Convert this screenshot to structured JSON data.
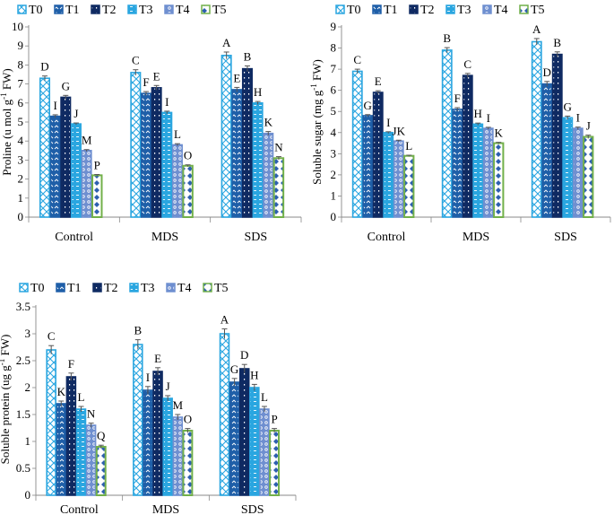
{
  "figure": {
    "series_colors": {
      "T0": "#2aa6e0",
      "T1": "#1f5fa8",
      "T2": "#0f2a62",
      "T3": "#2aa6e0",
      "T4": "#6f8fd0",
      "T5": "#72b04a"
    }
  },
  "chart_data": [
    {
      "type": "bar",
      "title": "",
      "xlabel": "",
      "ylabel": "Proline (u mol g-1 FW)",
      "ylabel_main": "Proline (u mol g",
      "ylabel_sup": "-1",
      "ylabel_tail": " FW)",
      "ylim": [
        0,
        10
      ],
      "yticks": [
        "0",
        "1",
        "2",
        "3",
        "4",
        "5",
        "6",
        "7",
        "8",
        "9",
        "10"
      ],
      "categories": [
        "Control",
        "MDS",
        "SDS"
      ],
      "legend": [
        "T0",
        "T1",
        "T2",
        "T3",
        "T4",
        "T5"
      ],
      "series": [
        {
          "name": "T0",
          "values": [
            7.3,
            7.6,
            8.5
          ],
          "errors": [
            0.12,
            0.15,
            0.18
          ],
          "labels": [
            "D",
            "C",
            "A"
          ]
        },
        {
          "name": "T1",
          "values": [
            5.3,
            6.5,
            6.7
          ],
          "errors": [
            0.08,
            0.1,
            0.12
          ],
          "labels": [
            "I",
            "F",
            "E"
          ]
        },
        {
          "name": "T2",
          "values": [
            6.3,
            6.8,
            7.8
          ],
          "errors": [
            0.1,
            0.12,
            0.15
          ],
          "labels": [
            "G",
            "E",
            "B"
          ]
        },
        {
          "name": "T3",
          "values": [
            4.9,
            5.5,
            6.0
          ],
          "errors": [
            0.05,
            0.07,
            0.08
          ],
          "labels": [
            "J",
            "I",
            "H"
          ]
        },
        {
          "name": "T4",
          "values": [
            3.5,
            3.8,
            4.4
          ],
          "errors": [
            0.05,
            0.06,
            0.1
          ],
          "labels": [
            "M",
            "L",
            "K"
          ]
        },
        {
          "name": "T5",
          "values": [
            2.2,
            2.7,
            3.1
          ],
          "errors": [
            0.04,
            0.05,
            0.08
          ],
          "labels": [
            "P",
            "O",
            "N"
          ]
        }
      ]
    },
    {
      "type": "bar",
      "title": "",
      "xlabel": "",
      "ylabel": "Soluble sugar (mg g-1 FW)",
      "ylabel_main": "Soluble sugar (mg g",
      "ylabel_sup": "-1",
      "ylabel_tail": " FW)",
      "ylim": [
        0,
        9
      ],
      "yticks": [
        "0",
        "1",
        "2",
        "3",
        "4",
        "5",
        "6",
        "7",
        "8",
        "9"
      ],
      "categories": [
        "Control",
        "MDS",
        "SDS"
      ],
      "legend": [
        "T0",
        "T1",
        "T2",
        "T3",
        "T4",
        "T5"
      ],
      "series": [
        {
          "name": "T0",
          "values": [
            6.9,
            7.9,
            8.3
          ],
          "errors": [
            0.1,
            0.12,
            0.15
          ],
          "labels": [
            "C",
            "B",
            "A"
          ]
        },
        {
          "name": "T1",
          "values": [
            4.8,
            5.1,
            6.3
          ],
          "errors": [
            0.05,
            0.08,
            0.12
          ],
          "labels": [
            "G",
            "F",
            "D"
          ]
        },
        {
          "name": "T2",
          "values": [
            5.9,
            6.7,
            7.7
          ],
          "errors": [
            0.08,
            0.1,
            0.12
          ],
          "labels": [
            "E",
            "C",
            "B"
          ]
        },
        {
          "name": "T3",
          "values": [
            4.0,
            4.4,
            4.7
          ],
          "errors": [
            0.04,
            0.05,
            0.08
          ],
          "labels": [
            "I",
            "H",
            "G"
          ]
        },
        {
          "name": "T4",
          "values": [
            3.6,
            4.2,
            4.2
          ],
          "errors": [
            0.04,
            0.05,
            0.06
          ],
          "labels": [
            "JK",
            "I",
            "I"
          ]
        },
        {
          "name": "T5",
          "values": [
            2.9,
            3.5,
            3.8
          ],
          "errors": [
            0.03,
            0.04,
            0.08
          ],
          "labels": [
            "L",
            "K",
            "J"
          ]
        }
      ]
    },
    {
      "type": "bar",
      "title": "",
      "xlabel": "",
      "ylabel": "Soluble protein (ug g-1 FW)",
      "ylabel_main": "Soluble protein (ug g",
      "ylabel_sup": "-1",
      "ylabel_tail": " FW)",
      "ylim": [
        0,
        3.5
      ],
      "yticks": [
        "0",
        "0.5",
        "1",
        "1.5",
        "2",
        "2.5",
        "3",
        "3.5"
      ],
      "categories": [
        "Control",
        "MDS",
        "SDS"
      ],
      "legend": [
        "T0",
        "T1",
        "T2",
        "T3",
        "T4",
        "T5"
      ],
      "series": [
        {
          "name": "T0",
          "values": [
            2.7,
            2.8,
            3.0
          ],
          "errors": [
            0.08,
            0.09,
            0.09
          ],
          "labels": [
            "C",
            "B",
            "A"
          ]
        },
        {
          "name": "T1",
          "values": [
            1.7,
            1.95,
            2.1
          ],
          "errors": [
            0.05,
            0.07,
            0.07
          ],
          "labels": [
            "K",
            "I",
            "G"
          ]
        },
        {
          "name": "T2",
          "values": [
            2.2,
            2.3,
            2.35
          ],
          "errors": [
            0.07,
            0.07,
            0.08
          ],
          "labels": [
            "F",
            "E",
            "D"
          ]
        },
        {
          "name": "T3",
          "values": [
            1.6,
            1.8,
            2.0
          ],
          "errors": [
            0.05,
            0.05,
            0.06
          ],
          "labels": [
            "L",
            "J",
            "H"
          ]
        },
        {
          "name": "T4",
          "values": [
            1.3,
            1.45,
            1.6
          ],
          "errors": [
            0.04,
            0.05,
            0.05
          ],
          "labels": [
            "N",
            "M",
            "L"
          ]
        },
        {
          "name": "T5",
          "values": [
            0.9,
            1.2,
            1.2
          ],
          "errors": [
            0.03,
            0.04,
            0.04
          ],
          "labels": [
            "Q",
            "O",
            "P"
          ]
        }
      ]
    }
  ]
}
